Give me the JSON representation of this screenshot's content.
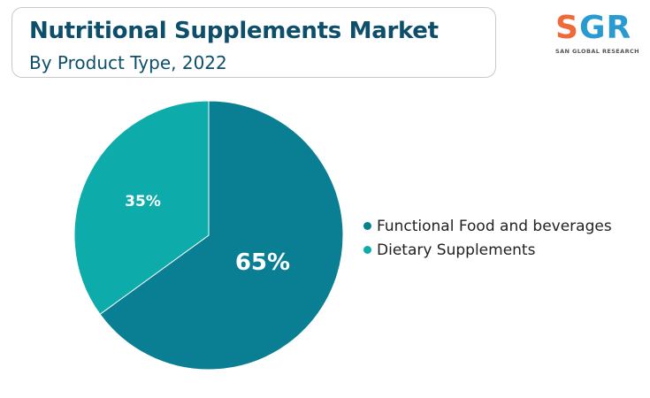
{
  "title": "Nutritional Supplements Market",
  "subtitle": "By Product Type, 2022",
  "logo": {
    "letters": [
      "S",
      "G",
      "R"
    ],
    "caption": "SAN GLOBAL RESEARCH"
  },
  "colors": {
    "title": "#0d4f6b",
    "functional_food": "#0a7f93",
    "dietary_supplements": "#0eabab"
  },
  "chart_data": {
    "type": "pie",
    "title": "Nutritional Supplements Market",
    "subtitle": "By Product Type, 2022",
    "slices": [
      {
        "label": "Functional Food and beverages",
        "value": 65,
        "display": "65%",
        "color": "#0a7f93"
      },
      {
        "label": "Dietary Supplements",
        "value": 35,
        "display": "35%",
        "color": "#0eabab"
      }
    ],
    "legend_position": "right"
  }
}
